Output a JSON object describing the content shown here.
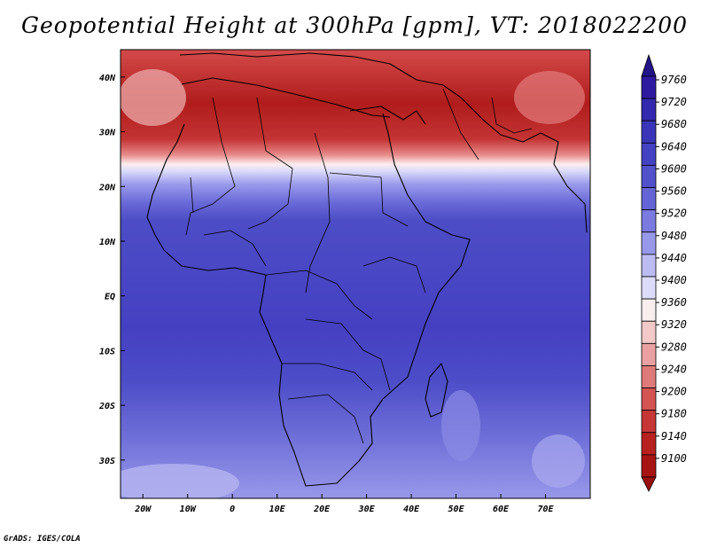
{
  "title": "Geopotential Height at 300hPa [gpm], VT: 2018022200",
  "credit": "GrADS: IGES/COLA",
  "map": {
    "lon_range": [
      -25,
      80
    ],
    "lat_range": [
      -37,
      45
    ],
    "x_ticks": [
      "20W",
      "10W",
      "0",
      "10E",
      "20E",
      "30E",
      "40E",
      "50E",
      "60E",
      "70E"
    ],
    "y_ticks": [
      "40N",
      "30N",
      "20N",
      "10N",
      "EQ",
      "10S",
      "20S",
      "30S"
    ]
  },
  "colorbar": {
    "labels": [
      "9760",
      "9720",
      "9680",
      "9640",
      "9600",
      "9560",
      "9520",
      "9480",
      "9440",
      "9400",
      "9360",
      "9320",
      "9280",
      "9240",
      "9200",
      "9180",
      "9140",
      "9100"
    ],
    "colors": [
      "#2e1aa0",
      "#3328ae",
      "#3a35b8",
      "#4441c2",
      "#5251cb",
      "#6464d6",
      "#7a7ae0",
      "#9898ea",
      "#bcbcf3",
      "#dcdcfa",
      "#f8eeee",
      "#f2c8c8",
      "#eaa0a0",
      "#e07a7a",
      "#d45454",
      "#c63636",
      "#b82020",
      "#a81414"
    ],
    "top_cap_color": "#231488",
    "bottom_cap_color": "#9a1010"
  }
}
